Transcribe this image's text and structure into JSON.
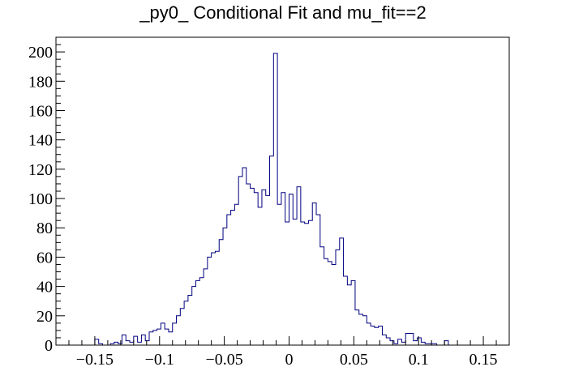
{
  "chart_data": {
    "type": "histogram",
    "title": "_py0_ Conditional Fit and mu_fit==2",
    "xlabel": "",
    "ylabel": "",
    "xlim": [
      -0.18,
      0.17
    ],
    "ylim": [
      0,
      210
    ],
    "bin_width": 0.003,
    "bin_start": -0.18,
    "x_ticks": [
      -0.15,
      -0.1,
      -0.05,
      0,
      0.05,
      0.1,
      0.15
    ],
    "x_tick_labels": [
      "−0.15",
      "−0.1",
      "−0.05",
      "0",
      "0.05",
      "0.1",
      "0.15"
    ],
    "y_ticks": [
      0,
      20,
      40,
      60,
      80,
      100,
      120,
      140,
      160,
      180,
      200
    ],
    "y_tick_labels": [
      "0",
      "20",
      "40",
      "60",
      "80",
      "100",
      "120",
      "140",
      "160",
      "180",
      "200"
    ],
    "line_color": "#000080",
    "grid": false,
    "values": [
      0,
      0,
      0,
      0,
      0,
      0,
      0,
      0,
      0,
      0,
      4,
      1,
      0,
      0,
      1,
      2,
      1,
      7,
      3,
      2,
      6,
      2,
      7,
      3,
      9,
      10,
      11,
      15,
      11,
      9,
      15,
      20,
      25,
      30,
      34,
      40,
      44,
      46,
      52,
      60,
      63,
      64,
      72,
      80,
      89,
      92,
      96,
      115,
      121,
      110,
      107,
      104,
      94,
      106,
      102,
      129,
      199,
      96,
      104,
      84,
      103,
      86,
      108,
      84,
      83,
      85,
      97,
      89,
      67,
      59,
      57,
      55,
      65,
      73,
      47,
      41,
      44,
      24,
      21,
      20,
      15,
      13,
      12,
      13,
      7,
      5,
      3,
      1,
      4,
      2,
      8,
      8,
      3,
      5,
      2,
      1,
      1,
      1,
      0,
      0,
      3,
      0,
      0,
      0,
      0,
      0,
      0
    ]
  }
}
